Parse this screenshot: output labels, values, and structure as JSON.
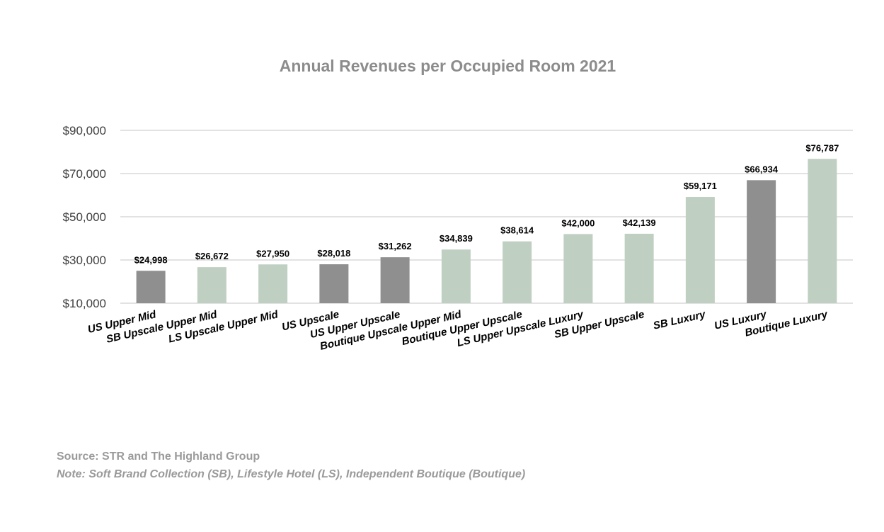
{
  "chart_data": {
    "type": "bar",
    "title": "Annual Revenues per Occupied Room 2021",
    "categories": [
      "US Upper Mid",
      "SB Upscale Upper Mid",
      "LS Upscale Upper Mid",
      "US Upscale",
      "US Upper Upscale",
      "Boutique Upscale Upper Mid",
      "Boutique Upper Upscale",
      "LS Upper Upscale Luxury",
      "SB Upper Upscale",
      "SB Luxury",
      "US Luxury",
      "Boutique Luxury"
    ],
    "values": [
      24998,
      26672,
      27950,
      28018,
      31262,
      34839,
      38614,
      42000,
      42139,
      59171,
      66934,
      76787
    ],
    "value_labels": [
      "$24,998",
      "$26,672",
      "$27,950",
      "$28,018",
      "$31,262",
      "$34,839",
      "$38,614",
      "$42,000",
      "$42,139",
      "$59,171",
      "$66,934",
      "$76,787"
    ],
    "bar_colors": [
      "#8f8f8f",
      "#bfcfc1",
      "#bfcfc1",
      "#8f8f8f",
      "#8f8f8f",
      "#bfcfc1",
      "#bfcfc1",
      "#bfcfc1",
      "#bfcfc1",
      "#bfcfc1",
      "#8f8f8f",
      "#bfcfc1"
    ],
    "ylim": [
      10000,
      90000
    ],
    "yticks": [
      10000,
      30000,
      50000,
      70000,
      90000
    ],
    "ytick_labels": [
      "$10,000",
      "$30,000",
      "$50,000",
      "$70,000",
      "$90,000"
    ],
    "xlabel": "",
    "ylabel": "",
    "grid": true
  },
  "footer": {
    "source": "Source: STR and The Highland Group",
    "note": "Note:  Soft Brand Collection (SB), Lifestyle Hotel (LS), Independent Boutique (Boutique)"
  },
  "colors": {
    "gray_bar": "#8f8f8f",
    "green_bar": "#bfcfc1",
    "gridline": "#d9d9d9",
    "title": "#8c8c8c"
  }
}
